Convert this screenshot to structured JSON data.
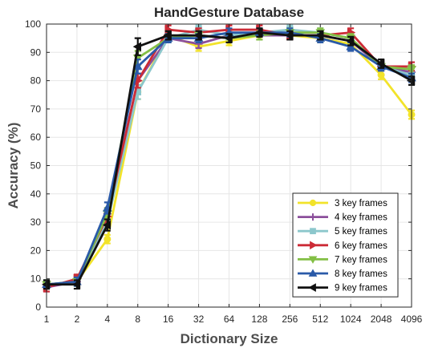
{
  "chart_data": {
    "type": "line",
    "title": "HandGesture Database",
    "xlabel": "Dictionary Size",
    "ylabel": "Accuracy (%)",
    "x_categories": [
      "1",
      "2",
      "4",
      "8",
      "16",
      "32",
      "64",
      "128",
      "256",
      "512",
      "1024",
      "2048",
      "4096"
    ],
    "ylim": [
      0,
      100
    ],
    "yticks": [
      0,
      10,
      20,
      30,
      40,
      50,
      60,
      70,
      80,
      90,
      100
    ],
    "grid": true,
    "legend_position": "bottom-right",
    "series": [
      {
        "name": "3 key frames",
        "color": "#f2e32a",
        "marker": "circle",
        "values": [
          8,
          9,
          24,
          76,
          96,
          92,
          94,
          96,
          96,
          95,
          93,
          82,
          68
        ],
        "errors": [
          1.5,
          1.5,
          1.5,
          2.5,
          1.5,
          1.5,
          1.5,
          1.5,
          1.5,
          1.5,
          1.5,
          1.5,
          1.5
        ]
      },
      {
        "name": "4 key frames",
        "color": "#8b4f9b",
        "marker": "plus",
        "values": [
          7,
          9,
          33,
          80,
          95,
          93,
          96,
          96,
          96,
          96,
          94,
          85,
          83
        ],
        "errors": [
          1.5,
          1.5,
          2,
          2.5,
          1.5,
          1.5,
          1.5,
          1.5,
          1.5,
          1.5,
          1.5,
          1.5,
          1.5
        ]
      },
      {
        "name": "5 key frames",
        "color": "#8cc7cc",
        "marker": "square",
        "values": [
          8,
          9,
          30,
          76,
          95,
          98,
          96,
          97,
          98,
          97,
          95,
          85,
          82
        ],
        "errors": [
          1.5,
          1.5,
          2,
          2.5,
          1.5,
          1.5,
          1.5,
          1.5,
          1.5,
          1.5,
          1.5,
          1.5,
          1.5
        ]
      },
      {
        "name": "6 key frames",
        "color": "#cc2b36",
        "marker": "triangle-right",
        "values": [
          7,
          10,
          32,
          80,
          98,
          97,
          98,
          98,
          96,
          96,
          97,
          85,
          85
        ],
        "errors": [
          1.5,
          1.5,
          2,
          2.5,
          1.5,
          1.5,
          1.5,
          1.5,
          1.5,
          1.5,
          1.5,
          1.5,
          1.5
        ]
      },
      {
        "name": "7 key frames",
        "color": "#83bf45",
        "marker": "triangle-down",
        "values": [
          8,
          9,
          33,
          88,
          95,
          96,
          95,
          96,
          97,
          97,
          95,
          85,
          84
        ],
        "errors": [
          1.5,
          1.5,
          2,
          2.5,
          1.5,
          1.5,
          1.5,
          1.5,
          1.5,
          1.5,
          1.5,
          1.5,
          1.5
        ]
      },
      {
        "name": "8 key frames",
        "color": "#2a5aa8",
        "marker": "triangle-up",
        "values": [
          8,
          9,
          35,
          85,
          95,
          95,
          97,
          97,
          97,
          95,
          92,
          85,
          81
        ],
        "errors": [
          1.5,
          1.5,
          2,
          2.5,
          1.5,
          1.5,
          1.5,
          1.5,
          1.5,
          1.5,
          1.5,
          1.5,
          1.5
        ]
      },
      {
        "name": "9 key frames",
        "color": "#111111",
        "marker": "triangle-left",
        "values": [
          8,
          8,
          29,
          92,
          96,
          96,
          95,
          97,
          96,
          96,
          94,
          86,
          80
        ],
        "errors": [
          1.5,
          1.5,
          2,
          3,
          1.5,
          1.5,
          1.5,
          1.5,
          1.5,
          1.5,
          1.5,
          1.5,
          1.5
        ]
      }
    ]
  }
}
